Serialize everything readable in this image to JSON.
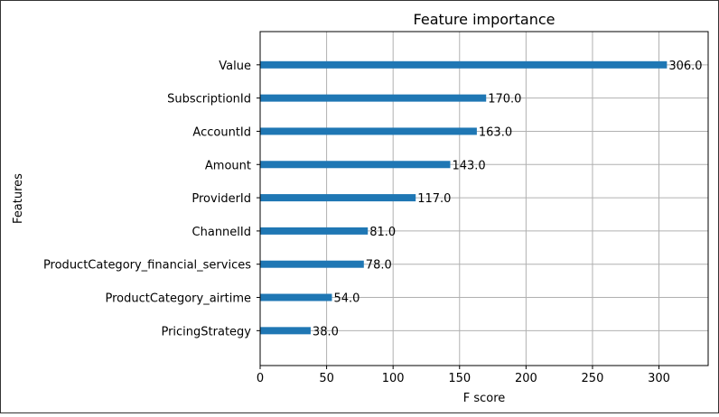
{
  "chart_data": {
    "type": "bar",
    "orientation": "horizontal",
    "title": "Feature importance",
    "xlabel": "F score",
    "ylabel": "Features",
    "categories": [
      "Value",
      "SubscriptionId",
      "AccountId",
      "Amount",
      "ProviderId",
      "ChannelId",
      "ProductCategory_financial_services",
      "ProductCategory_airtime",
      "PricingStrategy"
    ],
    "values": [
      306,
      170,
      163,
      143,
      117,
      81,
      78,
      54,
      38
    ],
    "data_labels": [
      "306.0",
      "170.0",
      "163.0",
      "143.0",
      "117.0",
      "81.0",
      "78.0",
      "54.0",
      "38.0"
    ],
    "xlim": [
      0,
      337
    ],
    "xticks": [
      0,
      50,
      100,
      150,
      200,
      250,
      300
    ],
    "grid": true,
    "bar_color": "#1f77b4"
  }
}
